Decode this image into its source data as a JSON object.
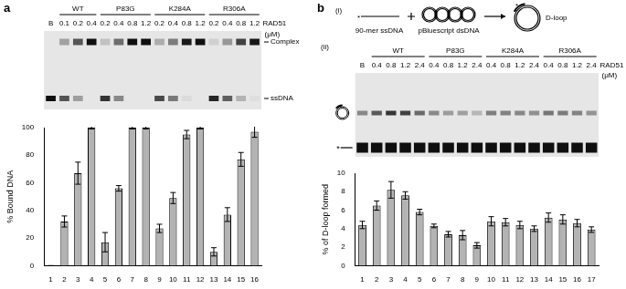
{
  "chart_data": [
    {
      "type": "bar",
      "categories": [
        "1",
        "2",
        "3",
        "4",
        "5",
        "6",
        "7",
        "8",
        "9",
        "10",
        "11",
        "12",
        "13",
        "14",
        "15",
        "16"
      ],
      "values": [
        0,
        32,
        67,
        100,
        17,
        56,
        100,
        100,
        27,
        49,
        95,
        100,
        10,
        37,
        77,
        97
      ],
      "errors": [
        0,
        4,
        8,
        1,
        7,
        2,
        1,
        1,
        3,
        4,
        3,
        1,
        3,
        5,
        5,
        4
      ],
      "y_label": "% Bound DNA",
      "ylim": [
        0,
        100
      ],
      "yticks": [
        0,
        20,
        40,
        60,
        80,
        100
      ],
      "color": "#b3b3b3"
    },
    {
      "type": "bar",
      "categories": [
        "1",
        "2",
        "3",
        "4",
        "5",
        "6",
        "7",
        "8",
        "9",
        "10",
        "11",
        "12",
        "13",
        "14",
        "15",
        "16",
        "17"
      ],
      "values": [
        4.4,
        6.5,
        8.2,
        7.6,
        5.8,
        4.3,
        3.4,
        3.3,
        2.2,
        4.8,
        4.7,
        4.4,
        4.0,
        5.2,
        5.0,
        4.6,
        3.9
      ],
      "errors": [
        0.4,
        0.5,
        0.9,
        0.4,
        0.3,
        0.2,
        0.3,
        0.5,
        0.3,
        0.5,
        0.4,
        0.4,
        0.3,
        0.5,
        0.5,
        0.4,
        0.3
      ],
      "y_label": "% of D-loop formed",
      "ylim": [
        0,
        10
      ],
      "yticks": [
        0,
        2,
        4,
        6,
        8,
        10
      ],
      "color": "#b3b3b3"
    }
  ],
  "panels": [
    {
      "label": "a",
      "gel": {
        "blank": "B",
        "groups": [
          {
            "name": "WT",
            "concentrations": [
              0.1,
              0.2,
              0.4
            ]
          },
          {
            "name": "P83G",
            "concentrations": [
              0.2,
              0.4,
              0.8,
              1.2
            ]
          },
          {
            "name": "K284A",
            "concentrations": [
              0.2,
              0.4,
              0.8,
              1.2
            ]
          },
          {
            "name": "R306A",
            "concentrations": [
              0.2,
              0.4,
              0.8,
              1.2
            ]
          }
        ],
        "protein": "RAD51",
        "unit": "(μM)",
        "bands": [
          "Complex",
          "ssDNA"
        ]
      }
    },
    {
      "label": "b",
      "schematic": {
        "label": "(i)",
        "probe": "90-mer ssDNA",
        "probe_mark": "*",
        "donor": "pBluescript dsDNA",
        "product": "D-loop"
      },
      "gel": {
        "label": "(ii)",
        "blank": "B",
        "groups": [
          {
            "name": "WT",
            "concentrations": [
              0.4,
              0.8,
              1.2,
              2.4
            ]
          },
          {
            "name": "P83G",
            "concentrations": [
              0.4,
              0.8,
              1.2,
              2.4
            ]
          },
          {
            "name": "K284A",
            "concentrations": [
              0.4,
              0.8,
              1.2,
              2.4
            ]
          },
          {
            "name": "R306A",
            "concentrations": [
              0.4,
              0.8,
              1.2,
              2.4
            ]
          }
        ],
        "protein": "RAD51",
        "unit": "(μM)",
        "probe_mark": "*"
      }
    }
  ]
}
